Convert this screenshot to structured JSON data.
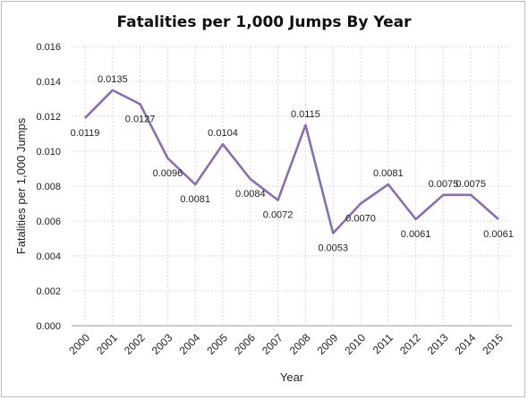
{
  "chart_data": {
    "type": "line",
    "title": "Fatalities per 1,000 Jumps By Year",
    "xlabel": "Year",
    "ylabel": "Fatalities per 1,000 Jumps",
    "ylim": [
      0,
      0.016
    ],
    "yticks": [
      "0.000",
      "0.002",
      "0.004",
      "0.006",
      "0.008",
      "0.010",
      "0.012",
      "0.014",
      "0.016"
    ],
    "grid": true,
    "legend": "none",
    "line_color": "#8a6fae",
    "categories": [
      "2000",
      "2001",
      "2002",
      "2003",
      "2004",
      "2005",
      "2006",
      "2007",
      "2008",
      "2009",
      "2010",
      "2011",
      "2012",
      "2013",
      "2014",
      "2015"
    ],
    "values": [
      0.0119,
      0.0135,
      0.0127,
      0.0096,
      0.0081,
      0.0104,
      0.0084,
      0.0072,
      0.0115,
      0.0053,
      0.007,
      0.0081,
      0.0061,
      0.0075,
      0.0075,
      0.0061
    ],
    "data_labels": [
      "0.0119",
      "0.0135",
      "0.0127",
      "0.0096",
      "0.0081",
      "0.0104",
      "0.0084",
      "0.0072",
      "0.0115",
      "0.0053",
      "0.0070",
      "0.0081",
      "0.0061",
      "0.0075",
      "0.0075",
      "0.0061"
    ]
  }
}
